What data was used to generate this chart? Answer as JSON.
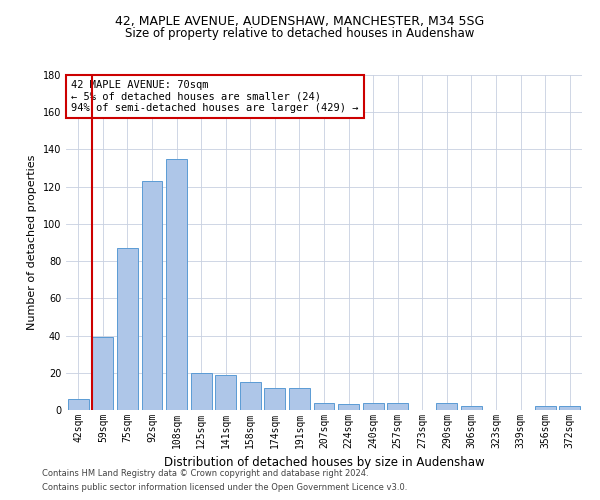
{
  "title1": "42, MAPLE AVENUE, AUDENSHAW, MANCHESTER, M34 5SG",
  "title2": "Size of property relative to detached houses in Audenshaw",
  "xlabel": "Distribution of detached houses by size in Audenshaw",
  "ylabel": "Number of detached properties",
  "categories": [
    "42sqm",
    "59sqm",
    "75sqm",
    "92sqm",
    "108sqm",
    "125sqm",
    "141sqm",
    "158sqm",
    "174sqm",
    "191sqm",
    "207sqm",
    "224sqm",
    "240sqm",
    "257sqm",
    "273sqm",
    "290sqm",
    "306sqm",
    "323sqm",
    "339sqm",
    "356sqm",
    "372sqm"
  ],
  "values": [
    6,
    39,
    87,
    123,
    135,
    20,
    19,
    15,
    12,
    12,
    4,
    3,
    4,
    4,
    0,
    4,
    2,
    0,
    0,
    2,
    2
  ],
  "bar_color": "#aec6e8",
  "bar_edge_color": "#5b9bd5",
  "vline_color": "#cc0000",
  "annotation_text": "42 MAPLE AVENUE: 70sqm\n← 5% of detached houses are smaller (24)\n94% of semi-detached houses are larger (429) →",
  "annotation_box_color": "#ffffff",
  "annotation_box_edge": "#cc0000",
  "ylim": [
    0,
    180
  ],
  "yticks": [
    0,
    20,
    40,
    60,
    80,
    100,
    120,
    140,
    160,
    180
  ],
  "footer1": "Contains HM Land Registry data © Crown copyright and database right 2024.",
  "footer2": "Contains public sector information licensed under the Open Government Licence v3.0.",
  "bg_color": "#ffffff",
  "grid_color": "#c8d0e0",
  "title1_fontsize": 9,
  "title2_fontsize": 8.5,
  "ylabel_fontsize": 8,
  "xlabel_fontsize": 8.5,
  "tick_fontsize": 7,
  "ann_fontsize": 7.5,
  "footer_fontsize": 6
}
